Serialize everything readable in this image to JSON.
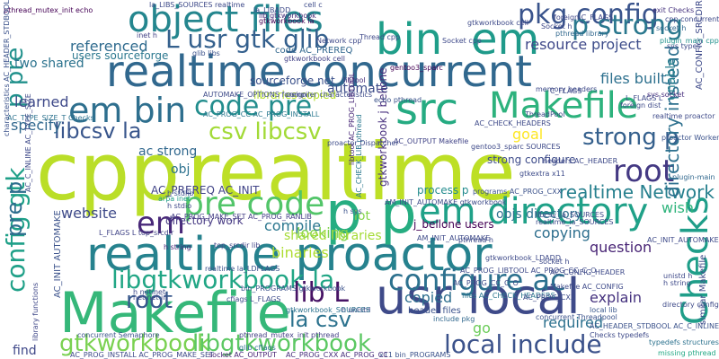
{
  "words": [
    {
      "text": "cpp",
      "color": "#bade28"
    },
    {
      "text": "realtime",
      "color": "#bddf26"
    },
    {
      "text": "realtime concurrent",
      "color": "#31688e"
    },
    {
      "text": "realtime proactor",
      "color": "#26828e"
    },
    {
      "text": "Makefile",
      "color": "#35b779"
    },
    {
      "text": "usr local",
      "color": "#3e4a89"
    },
    {
      "text": "object files",
      "color": "#24868e"
    },
    {
      "text": "bin",
      "color": "#1f9e89"
    },
    {
      "text": "em",
      "color": "#1f9a8a"
    },
    {
      "text": "em bin",
      "color": "#2e6f8e"
    },
    {
      "text": "src",
      "color": "#25ab82"
    },
    {
      "text": "Makefile",
      "color": "#2db27d"
    },
    {
      "text": "Checks",
      "color": "#1f9e89"
    },
    {
      "text": "pkg config",
      "color": "#3a548c"
    },
    {
      "text": "p strong",
      "color": "#2a788e"
    },
    {
      "text": "L usr gtk glib",
      "color": "#34608d"
    },
    {
      "text": "p pre",
      "color": "#21918c"
    },
    {
      "text": "em directory",
      "color": "#1fa188"
    },
    {
      "text": "configure ac",
      "color": "#2c718e"
    },
    {
      "text": "libgtkworkbook la",
      "color": "#21a685"
    },
    {
      "text": "root",
      "color": "#443983"
    },
    {
      "text": "p p",
      "color": "#26ad81"
    },
    {
      "text": "code pre",
      "color": "#228d8d"
    },
    {
      "text": "pre code",
      "color": "#52c569"
    },
    {
      "text": "em",
      "color": "#482878"
    },
    {
      "text": "local include",
      "color": "#3b528b"
    },
    {
      "text": "gtkworkbook",
      "color": "#7ad151"
    },
    {
      "text": "libgtkworkbook",
      "color": "#5cc863"
    },
    {
      "text": "lib L",
      "color": "#471365"
    },
    {
      "text": "la csv",
      "color": "#2c728e"
    },
    {
      "text": "config gtk",
      "color": "#1fa088"
    },
    {
      "text": "pre p",
      "color": "#2e6e8e"
    },
    {
      "text": "libcsv la",
      "color": "#39568c"
    },
    {
      "text": "csv libcsv",
      "color": "#a2da37"
    },
    {
      "text": "strong p",
      "color": "#35608d"
    },
    {
      "text": "root",
      "color": "#38588c"
    },
    {
      "text": "realtime Network",
      "color": "#27808e"
    },
    {
      "text": "directory instead",
      "color": "#2d708e"
    },
    {
      "text": "referenced",
      "color": "#2f6b8e"
    },
    {
      "text": "project",
      "color": "#3d4d8a"
    },
    {
      "text": "resource",
      "color": "#3f4889"
    },
    {
      "text": "files built",
      "color": "#2d708e"
    },
    {
      "text": "learned",
      "color": "#3e4989"
    },
    {
      "text": "specify",
      "color": "#31688e"
    },
    {
      "text": "two shared",
      "color": "#2c738e"
    },
    {
      "text": "users sourceforge",
      "color": "#2a778e"
    },
    {
      "text": "sourceforge net",
      "color": "#3b518b"
    },
    {
      "text": "automate",
      "color": "#3d4e8a"
    },
    {
      "text": "goal",
      "color": "#fde725"
    },
    {
      "text": "website",
      "color": "#3e4a89"
    },
    {
      "text": "compile",
      "color": "#2a768e"
    },
    {
      "text": "looking",
      "color": "#7fd34e"
    },
    {
      "text": "copying",
      "color": "#2e6f8e"
    },
    {
      "text": "question",
      "color": "#482475"
    },
    {
      "text": "explain",
      "color": "#46337f"
    },
    {
      "text": "required",
      "color": "#2c718e"
    },
    {
      "text": "copied",
      "color": "#2e6e8e"
    },
    {
      "text": "binaries",
      "color": "#addc30"
    },
    {
      "text": "shared libraries",
      "color": "#a5db36"
    },
    {
      "text": "wish",
      "color": "#2fb47c"
    },
    {
      "text": "objs directory",
      "color": "#2d708e"
    },
    {
      "text": "lot",
      "color": "#85d54a"
    },
    {
      "text": "unable",
      "color": "#27808e"
    },
    {
      "text": "find",
      "color": "#3f4889"
    },
    {
      "text": "go",
      "color": "#6ccd5a"
    },
    {
      "text": "obj",
      "color": "#2c718e"
    },
    {
      "text": "ac strong",
      "color": "#31688e"
    },
    {
      "text": "AC_PREREQ AC_INIT",
      "color": "#404387"
    },
    {
      "text": "AC_INIT AUTOMAKE",
      "color": "#3b528b"
    },
    {
      "text": "directory work",
      "color": "#453882"
    },
    {
      "text": "libraries copied",
      "color": "#b5de2b"
    },
    {
      "text": "header files",
      "color": "#3b528b"
    },
    {
      "text": "process p",
      "color": "#228b8d"
    },
    {
      "text": "j_bellone users",
      "color": "#440154"
    },
    {
      "text": "strong configure",
      "color": "#3e4c8a"
    },
    {
      "text": "code AC_PREREQ",
      "color": "#31678e"
    },
    {
      "text": "gtkworkbook cell",
      "color": "#424186"
    },
    {
      "text": "gtkworkbook j bellone",
      "color": "#472f7d"
    },
    {
      "text": "cfiags L_FLAGS",
      "color": "#3e4c8a"
    },
    {
      "text": "AC_OUTPUT Makefile",
      "color": "#414487"
    },
    {
      "text": "echo pthread",
      "color": "#3b528b"
    },
    {
      "text": "pthread_mutex_init echo",
      "color": "#440154"
    },
    {
      "text": "libtool",
      "color": "#472d7b"
    },
    {
      "text": "compiler characteristics",
      "color": "#3e4c8a"
    },
    {
      "text": "pthread library",
      "color": "#31688e"
    },
    {
      "text": "foreign C_FLAGS",
      "color": "#3f4788"
    },
    {
      "text": "AC_PROG_CC AC_PROG_INSTALL",
      "color": "#2a788e"
    },
    {
      "text": "files AC_CHECK_HEADERS",
      "color": "#2a768e"
    },
    {
      "text": "AC_PROG_INSTALL AC_PROG_MAKE_SET",
      "color": "#3e4a89"
    },
    {
      "text": "socket AC_OUTPUT",
      "color": "#482475"
    },
    {
      "text": "x11 bin_PROGRAMS",
      "color": "#3b528b"
    },
    {
      "text": "AC_PROG_CXX AC_PROG_CC",
      "color": "#472d7b"
    },
    {
      "text": "include pkg",
      "color": "#31688e"
    },
    {
      "text": "local lib",
      "color": "#39568c"
    },
    {
      "text": "similar Makefile",
      "color": "#3e4989"
    },
    {
      "text": "AC_TYPE_SIZE_T Checks",
      "color": "#2c728e"
    },
    {
      "text": "characteristics AC_HEADER_STDBOOL",
      "color": "#3b528b"
    },
    {
      "text": "AC_C_INLINE AC_TYPE_SIZE",
      "color": "#3e4989"
    },
    {
      "text": "exit Checks",
      "color": "#46327e"
    },
    {
      "text": "AC_PROG_CXX",
      "color": "#3e4c8a"
    },
    {
      "text": "AUTOMAKE_OPTIONS foreign",
      "color": "#3e4a89"
    },
    {
      "text": "la_LIBADD",
      "color": "#3e4a89"
    },
    {
      "text": "glib libs",
      "color": "#3b528b"
    },
    {
      "text": "inet h",
      "color": "#424086"
    },
    {
      "text": "cell c",
      "color": "#3e4c8a"
    },
    {
      "text": "sys socket",
      "color": "#472f7d"
    },
    {
      "text": "L_FLAGS L",
      "color": "#3e4989"
    },
    {
      "text": "typedefs structures",
      "color": "#2c728e"
    },
    {
      "text": "AC_HEADER_STDBOOL AC_C_INLINE",
      "color": "#3b528b"
    },
    {
      "text": "missing pthread",
      "color": "#22a884"
    },
    {
      "text": "library functions",
      "color": "#3f4788"
    },
    {
      "text": "arpa inet",
      "color": "#1f9e89"
    },
    {
      "text": "pthread_mutex_init pthread",
      "color": "#433e85"
    },
    {
      "text": "pthread h",
      "color": "#3e4a89"
    },
    {
      "text": "netinet in",
      "color": "#3f4788"
    },
    {
      "text": "AC_CHECK_LIB pthread",
      "color": "#2a788e"
    },
    {
      "text": "L_FLAGS L top_srcdir",
      "color": "#414487"
    },
    {
      "text": "AC_PROG_LIBTOOL AC_PROG_CC_C_O",
      "color": "#3e4a89"
    },
    {
      "text": "libtool AC_PROG_LIBTOOL",
      "color": "#482878"
    },
    {
      "text": "AC_PROG_MAKE_SET AC_PROG_RANLIB",
      "color": "#433e85"
    },
    {
      "text": "bin_PROGRAMS gtkworkbook",
      "color": "#3b528b"
    },
    {
      "text": "AC_CONFIG_SRCDIR",
      "color": "#3e4a89"
    },
    {
      "text": "gentoo3_sparc",
      "color": "#440154"
    },
    {
      "text": "h netinet",
      "color": "#3e4989"
    },
    {
      "text": "h stdio",
      "color": "#3e4989"
    },
    {
      "text": "h string",
      "color": "#482878"
    },
    {
      "text": "h unistd",
      "color": "#414487"
    },
    {
      "text": "h sys",
      "color": "#3b528b"
    },
    {
      "text": "h stdlib",
      "color": "#3b528b"
    },
    {
      "text": "proactor Dispatcher",
      "color": "#3e4c8a"
    },
    {
      "text": "concurrent Threadpool",
      "color": "#3b528b"
    },
    {
      "text": "socket h",
      "color": "#31688e"
    },
    {
      "text": "gtkworkbook_SOURCES",
      "color": "#2c728e"
    },
    {
      "text": "top_srcdir lib",
      "color": "#414487"
    },
    {
      "text": "lib gtkworkbook",
      "color": "#472d7b"
    },
    {
      "text": "gtkworkbook la",
      "color": "#440154"
    },
    {
      "text": "realtime la_LDFLAGS",
      "color": "#3b528b"
    },
    {
      "text": "proactor Worker",
      "color": "#3b528b"
    },
    {
      "text": "concurrent Semaphore",
      "color": "#3b528b"
    },
    {
      "text": "realtime proactor",
      "color": "#3e4a89"
    },
    {
      "text": "glib cflags",
      "color": "#2c728e"
    },
    {
      "text": "plugin_main cpp",
      "color": "#21918c"
    },
    {
      "text": "gtkextra x11",
      "color": "#3e4c8a"
    },
    {
      "text": "AC_INIT_AUTOMAKE",
      "color": "#3e4a89"
    },
    {
      "text": "C_FLAGS",
      "color": "#3e4989"
    },
    {
      "text": "programs AC_PROG_CXX",
      "color": "#3b528b"
    },
    {
      "text": "AM_INIT_AUTOMAKE gtkworkbook",
      "color": "#3e4c8a"
    },
    {
      "text": "plugin-main",
      "color": "#31688e"
    },
    {
      "text": "Thread cpp",
      "color": "#3e4989"
    },
    {
      "text": "Network cpp",
      "color": "#3e4989"
    },
    {
      "text": "Socket cpp",
      "color": "#3e4989"
    },
    {
      "text": "ThreadPool",
      "color": "#3e4a89"
    },
    {
      "text": "cpp concurrent",
      "color": "#3e4a89"
    },
    {
      "text": "la_LIBS_SOURCES realtime",
      "color": "#3e4a89"
    },
    {
      "text": "Socket h",
      "color": "#3e4989"
    },
    {
      "text": "sys types",
      "color": "#3e4a89"
    },
    {
      "text": "memory headers",
      "color": "#3e4a89"
    },
    {
      "text": "foreign dist",
      "color": "#3e4a89"
    },
    {
      "text": "unistd h",
      "color": "#3e4989"
    },
    {
      "text": "h string",
      "color": "#3e4989"
    },
    {
      "text": "directory config",
      "color": "#3e4a89"
    },
    {
      "text": "AC_PROG_CC_C_O",
      "color": "#3e4a89"
    },
    {
      "text": "gtkworkbook cell",
      "color": "#3e4a89"
    },
    {
      "text": "AC_CHECK_HEADERS",
      "color": "#3e4a89"
    },
    {
      "text": "Makefile AC_CONFIG",
      "color": "#3e4a89"
    },
    {
      "text": "AM_INIT_AUTOMAKE",
      "color": "#3e4a89"
    },
    {
      "text": "AC_CONFIG_HEADER",
      "color": "#3e4a89"
    },
    {
      "text": "socket h",
      "color": "#3e4a89"
    },
    {
      "text": "headers AC_HEADER",
      "color": "#3e4a89"
    },
    {
      "text": "Checks typedefs",
      "color": "#3e4a89"
    },
    {
      "text": "libcsv_la_SOURCES",
      "color": "#3e4a89"
    },
    {
      "text": "realtime_la_SOURCES",
      "color": "#3e4a89"
    },
    {
      "text": "gtkworkbook_LDADD",
      "color": "#3e4a89"
    },
    {
      "text": "gentoo3_sparc SOURCES",
      "color": "#3e4a89"
    }
  ]
}
